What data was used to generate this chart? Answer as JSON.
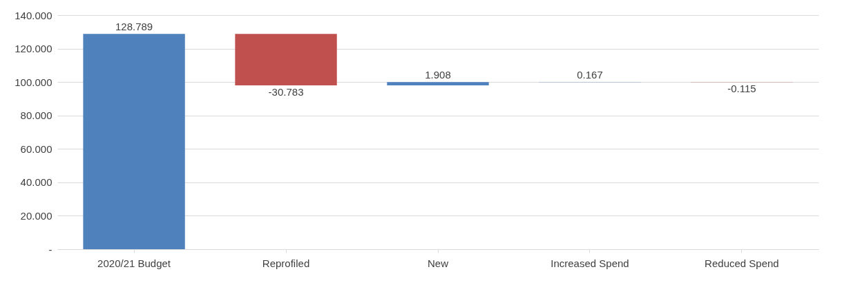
{
  "chart_data": {
    "type": "bar",
    "categories": [
      "2020/21 Budget",
      "Reprofiled",
      "New",
      "Increased Spend",
      "Reduced Spend"
    ],
    "values": [
      128.789,
      -30.783,
      1.908,
      0.167,
      -0.115
    ],
    "base": [
      0,
      128.789,
      98.006,
      99.914,
      100.081
    ],
    "colors": [
      "#4f81bd",
      "#c0504d",
      "#4f81bd",
      "#4f81bd",
      "#c0504d"
    ],
    "ylim": [
      0,
      140
    ],
    "yticks": [
      {
        "value": 0,
        "label": "-"
      },
      {
        "value": 20,
        "label": "20.000"
      },
      {
        "value": 40,
        "label": "40.000"
      },
      {
        "value": 60,
        "label": "60.000"
      },
      {
        "value": 80,
        "label": "80.000"
      },
      {
        "value": 100,
        "label": "100.000"
      },
      {
        "value": 120,
        "label": "120.000"
      },
      {
        "value": 140,
        "label": "140.000"
      }
    ],
    "grid": "y",
    "data_labels": true
  }
}
